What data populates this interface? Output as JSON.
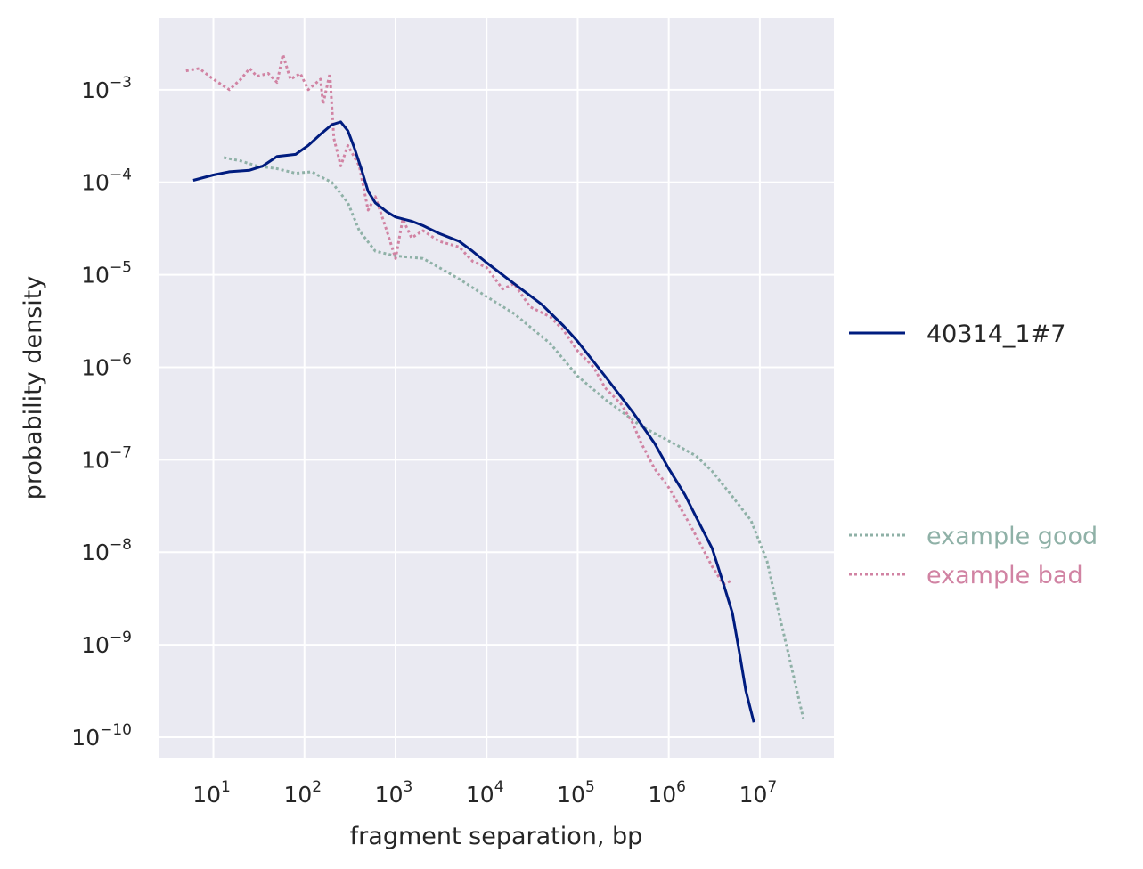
{
  "chart_data": {
    "type": "line",
    "title": "",
    "xlabel": "fragment separation, bp",
    "ylabel": "probability density",
    "xscale": "log",
    "yscale": "log",
    "xlim": [
      2.5,
      65000000
    ],
    "ylim": [
      6e-11,
      0.006
    ],
    "grid": true,
    "legend_placement": "right",
    "x_ticks": [
      {
        "base": "10",
        "exp": "1",
        "value": 10
      },
      {
        "base": "10",
        "exp": "2",
        "value": 100
      },
      {
        "base": "10",
        "exp": "3",
        "value": 1000
      },
      {
        "base": "10",
        "exp": "4",
        "value": 10000
      },
      {
        "base": "10",
        "exp": "5",
        "value": 100000
      },
      {
        "base": "10",
        "exp": "6",
        "value": 1000000
      },
      {
        "base": "10",
        "exp": "7",
        "value": 10000000
      }
    ],
    "y_ticks": [
      {
        "base": "10",
        "exp": "−3",
        "value": 0.001
      },
      {
        "base": "10",
        "exp": "−4",
        "value": 0.0001
      },
      {
        "base": "10",
        "exp": "−5",
        "value": 1e-05
      },
      {
        "base": "10",
        "exp": "−6",
        "value": 1e-06
      },
      {
        "base": "10",
        "exp": "−7",
        "value": 1e-07
      },
      {
        "base": "10",
        "exp": "−8",
        "value": 1e-08
      },
      {
        "base": "10",
        "exp": "−9",
        "value": 1e-09
      },
      {
        "base": "10",
        "exp": "−10",
        "value": 1e-10
      }
    ],
    "series": [
      {
        "name": "40314_1#7",
        "color": "#001c7f",
        "style": "solid",
        "points": [
          [
            6,
            0.000105
          ],
          [
            10,
            0.00012
          ],
          [
            15,
            0.00013
          ],
          [
            25,
            0.000135
          ],
          [
            35,
            0.00015
          ],
          [
            50,
            0.00019
          ],
          [
            80,
            0.0002
          ],
          [
            110,
            0.00025
          ],
          [
            150,
            0.00033
          ],
          [
            200,
            0.00042
          ],
          [
            250,
            0.00045
          ],
          [
            300,
            0.00036
          ],
          [
            350,
            0.00024
          ],
          [
            420,
            0.00014
          ],
          [
            500,
            8e-05
          ],
          [
            600,
            6e-05
          ],
          [
            800,
            4.8e-05
          ],
          [
            1000,
            4.2e-05
          ],
          [
            1500,
            3.8e-05
          ],
          [
            2000,
            3.4e-05
          ],
          [
            3000,
            2.8e-05
          ],
          [
            5000,
            2.3e-05
          ],
          [
            7000,
            1.8e-05
          ],
          [
            10000,
            1.35e-05
          ],
          [
            20000,
            8e-06
          ],
          [
            40000,
            4.8e-06
          ],
          [
            70000,
            2.8e-06
          ],
          [
            100000,
            1.9e-06
          ],
          [
            200000,
            8e-07
          ],
          [
            400000,
            3.3e-07
          ],
          [
            700000,
            1.5e-07
          ],
          [
            1000000,
            8e-08
          ],
          [
            1500000,
            4.2e-08
          ],
          [
            2000000,
            2.4e-08
          ],
          [
            3000000,
            1.1e-08
          ],
          [
            4000000,
            4.5e-09
          ],
          [
            5000000,
            2.2e-09
          ],
          [
            6000000,
            8e-10
          ],
          [
            7000000,
            3.2e-10
          ],
          [
            8600000,
            1.45e-10
          ]
        ]
      },
      {
        "name": "example good",
        "color": "#8fb1a7",
        "style": "dotted",
        "points": [
          [
            13,
            0.000185
          ],
          [
            20,
            0.00017
          ],
          [
            30,
            0.00015
          ],
          [
            50,
            0.00014
          ],
          [
            80,
            0.000125
          ],
          [
            120,
            0.00013
          ],
          [
            150,
            0.000115
          ],
          [
            200,
            0.0001
          ],
          [
            300,
            6e-05
          ],
          [
            400,
            3e-05
          ],
          [
            600,
            1.8e-05
          ],
          [
            1000,
            1.6e-05
          ],
          [
            2000,
            1.5e-05
          ],
          [
            3000,
            1.2e-05
          ],
          [
            5000,
            9e-06
          ],
          [
            10000,
            5.8e-06
          ],
          [
            20000,
            3.8e-06
          ],
          [
            50000,
            1.8e-06
          ],
          [
            100000,
            8e-07
          ],
          [
            200000,
            4.5e-07
          ],
          [
            500000,
            2.3e-07
          ],
          [
            1000000,
            1.6e-07
          ],
          [
            2000000,
            1.1e-07
          ],
          [
            3000000,
            7.5e-08
          ],
          [
            5000000,
            4e-08
          ],
          [
            8000000,
            2.2e-08
          ],
          [
            12000000,
            8e-09
          ],
          [
            15000000,
            3e-09
          ],
          [
            20000000,
            9e-10
          ],
          [
            30000000,
            1.6e-10
          ]
        ]
      },
      {
        "name": "example bad",
        "color": "#d183a3",
        "style": "dotted",
        "points": [
          [
            5,
            0.0016
          ],
          [
            7,
            0.0017
          ],
          [
            10,
            0.0013
          ],
          [
            15,
            0.001
          ],
          [
            20,
            0.0013
          ],
          [
            25,
            0.0017
          ],
          [
            30,
            0.0014
          ],
          [
            40,
            0.0015
          ],
          [
            50,
            0.0012
          ],
          [
            58,
            0.0024
          ],
          [
            70,
            0.0013
          ],
          [
            90,
            0.0015
          ],
          [
            110,
            0.001
          ],
          [
            150,
            0.0013
          ],
          [
            160,
            0.0007
          ],
          [
            190,
            0.0015
          ],
          [
            210,
            0.0003
          ],
          [
            250,
            0.00015
          ],
          [
            300,
            0.00025
          ],
          [
            400,
            0.00015
          ],
          [
            500,
            5e-05
          ],
          [
            600,
            7e-05
          ],
          [
            800,
            3e-05
          ],
          [
            1000,
            1.5e-05
          ],
          [
            1200,
            4e-05
          ],
          [
            1500,
            2.5e-05
          ],
          [
            2000,
            3e-05
          ],
          [
            3000,
            2.3e-05
          ],
          [
            5000,
            2e-05
          ],
          [
            7000,
            1.4e-05
          ],
          [
            10000,
            1.2e-05
          ],
          [
            15000,
            7e-06
          ],
          [
            20000,
            8e-06
          ],
          [
            30000,
            4.5e-06
          ],
          [
            50000,
            3.5e-06
          ],
          [
            70000,
            2.5e-06
          ],
          [
            100000,
            1.5e-06
          ],
          [
            150000,
            1e-06
          ],
          [
            200000,
            6e-07
          ],
          [
            300000,
            4e-07
          ],
          [
            400000,
            2.5e-07
          ],
          [
            500000,
            1.5e-07
          ],
          [
            700000,
            8e-08
          ],
          [
            1000000,
            5e-08
          ],
          [
            1500000,
            2.5e-08
          ],
          [
            2000000,
            1.5e-08
          ],
          [
            3000000,
            7e-09
          ],
          [
            4000000,
            4.5e-09
          ],
          [
            5000000,
            5e-09
          ]
        ]
      }
    ],
    "legend": [
      {
        "label": "40314_1#7",
        "color": "#001c7f",
        "style": "solid"
      },
      {
        "label": "example good",
        "color": "#8fb1a7",
        "style": "dotted"
      },
      {
        "label": "example bad",
        "color": "#d183a3",
        "style": "dotted"
      }
    ]
  }
}
